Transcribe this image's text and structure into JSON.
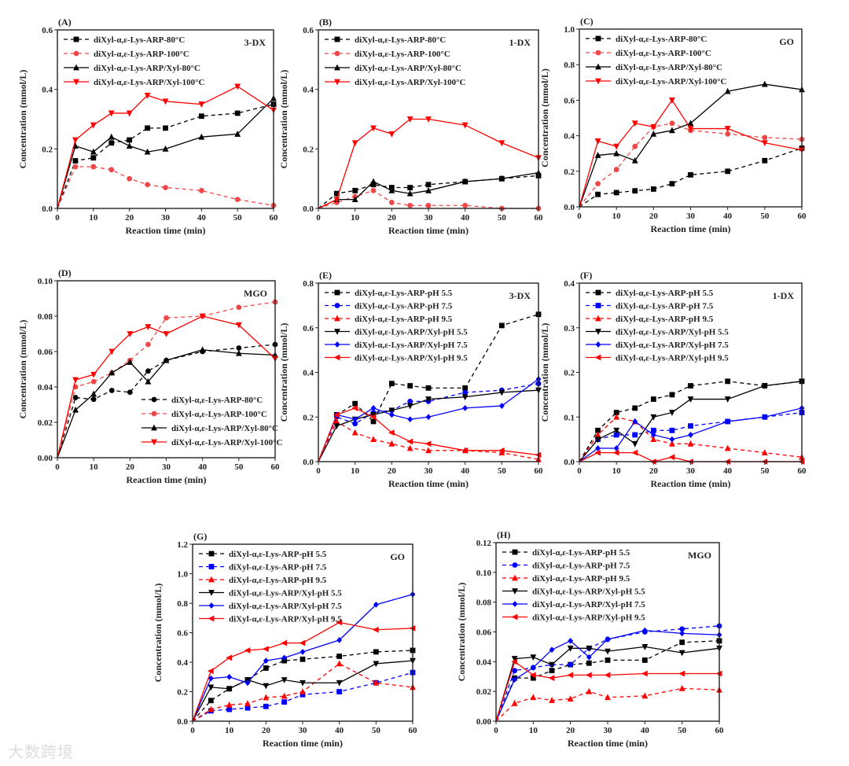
{
  "watermark": "大数跨境",
  "colors": {
    "black": "#000000",
    "red": "#ff0000",
    "light_red": "#f04848",
    "blue": "#0000ff"
  },
  "chart_data": [
    {
      "panel": "(A)",
      "tag": "3-DX",
      "type": "line",
      "xlabel": "Reaction time (min)",
      "ylabel": "Concentration (mmol/L)",
      "x": [
        0,
        5,
        10,
        15,
        20,
        25,
        30,
        40,
        50,
        60
      ],
      "xticks": [
        "0",
        "10",
        "20",
        "30",
        "40",
        "50",
        "60"
      ],
      "ylim": [
        0,
        0.6
      ],
      "yticks": [
        "0.0",
        "0.2",
        "0.4",
        "0.6"
      ],
      "legend": "top-left",
      "series": [
        {
          "name": "diXyl-α,ε-Lys-ARP-80°C",
          "color": "#000000",
          "dash": true,
          "marker": "square",
          "values": [
            0,
            0.16,
            0.17,
            0.22,
            0.23,
            0.27,
            0.27,
            0.31,
            0.32,
            0.35
          ]
        },
        {
          "name": "diXyl-α,ε-Lys-ARP-100°C",
          "color": "#f04848",
          "dash": true,
          "marker": "circle",
          "values": [
            0,
            0.14,
            0.14,
            0.13,
            0.1,
            0.08,
            0.07,
            0.06,
            0.03,
            0.01
          ]
        },
        {
          "name": "diXyl-α,ε-Lys-ARP/Xyl-80°C",
          "color": "#000000",
          "dash": false,
          "marker": "triangle",
          "values": [
            0,
            0.21,
            0.19,
            0.24,
            0.21,
            0.19,
            0.2,
            0.24,
            0.25,
            0.37
          ]
        },
        {
          "name": "diXyl-α,ε-Lys-ARP/Xyl-100°C",
          "color": "#ff0000",
          "dash": false,
          "marker": "down",
          "values": [
            0,
            0.23,
            0.28,
            0.32,
            0.32,
            0.38,
            0.36,
            0.35,
            0.41,
            0.33
          ]
        }
      ]
    },
    {
      "panel": "(B)",
      "tag": "1-DX",
      "type": "line",
      "xlabel": "Reaction time (min)",
      "ylabel": "Concentration (mmol/L)",
      "x": [
        0,
        5,
        10,
        15,
        20,
        25,
        30,
        40,
        50,
        60
      ],
      "xticks": [
        "0",
        "10",
        "20",
        "30",
        "40",
        "50",
        "60"
      ],
      "ylim": [
        0,
        0.6
      ],
      "yticks": [
        "0.0",
        "0.2",
        "0.4",
        "0.6"
      ],
      "legend": "top-left",
      "series": [
        {
          "name": "diXyl-α,ε-Lys-ARP-80°C",
          "color": "#000000",
          "dash": true,
          "marker": "square",
          "values": [
            0,
            0.05,
            0.06,
            0.08,
            0.07,
            0.07,
            0.08,
            0.09,
            0.1,
            0.11
          ]
        },
        {
          "name": "diXyl-α,ε-Lys-ARP-100°C",
          "color": "#f04848",
          "dash": true,
          "marker": "circle",
          "values": [
            0,
            0.02,
            0.04,
            0.06,
            0.02,
            0.01,
            0.01,
            0.01,
            0,
            0
          ]
        },
        {
          "name": "diXyl-α,ε-Lys-ARP/Xyl-80°C",
          "color": "#000000",
          "dash": false,
          "marker": "triangle",
          "values": [
            0,
            0.03,
            0.03,
            0.09,
            0.06,
            0.05,
            0.06,
            0.09,
            0.1,
            0.12
          ]
        },
        {
          "name": "diXyl-α,ε-Lys-ARP/Xyl-100°C",
          "color": "#ff0000",
          "dash": false,
          "marker": "down",
          "values": [
            0,
            0.03,
            0.22,
            0.27,
            0.25,
            0.3,
            0.3,
            0.28,
            0.22,
            0.17
          ]
        }
      ]
    },
    {
      "panel": "(C)",
      "tag": "GO",
      "type": "line",
      "xlabel": "Reaction time (min)",
      "ylabel": "Concentration (mmol/L)",
      "x": [
        0,
        5,
        10,
        15,
        20,
        25,
        30,
        40,
        50,
        60
      ],
      "xticks": [
        "0",
        "10",
        "20",
        "30",
        "40",
        "50",
        "60"
      ],
      "ylim": [
        0,
        1.0
      ],
      "yticks": [
        "0.0",
        "0.2",
        "0.4",
        "0.6",
        "0.8",
        "1.0"
      ],
      "legend": "top-left",
      "series": [
        {
          "name": "diXyl-α,ε-Lys-ARP-80°C",
          "color": "#000000",
          "dash": true,
          "marker": "square",
          "values": [
            0,
            0.07,
            0.08,
            0.09,
            0.1,
            0.13,
            0.18,
            0.2,
            0.26,
            0.33
          ]
        },
        {
          "name": "diXyl-α,ε-Lys-ARP-100°C",
          "color": "#f04848",
          "dash": true,
          "marker": "circle",
          "values": [
            0,
            0.13,
            0.21,
            0.34,
            0.45,
            0.47,
            0.43,
            0.41,
            0.39,
            0.38
          ]
        },
        {
          "name": "diXyl-α,ε-Lys-ARP/Xyl-80°C",
          "color": "#000000",
          "dash": false,
          "marker": "triangle",
          "values": [
            0,
            0.29,
            0.3,
            0.26,
            0.41,
            0.43,
            0.47,
            0.65,
            0.69,
            0.66
          ]
        },
        {
          "name": "diXyl-α,ε-Lys-ARP/Xyl-100°C",
          "color": "#ff0000",
          "dash": false,
          "marker": "down",
          "values": [
            0,
            0.37,
            0.34,
            0.47,
            0.45,
            0.6,
            0.44,
            0.44,
            0.36,
            0.32
          ]
        }
      ]
    },
    {
      "panel": "(D)",
      "tag": "MGO",
      "type": "line",
      "xlabel": "Reaction time (min)",
      "ylabel": "Concentration (mmol/L)",
      "x": [
        0,
        5,
        10,
        15,
        20,
        25,
        30,
        40,
        50,
        60
      ],
      "xticks": [
        "0",
        "10",
        "20",
        "30",
        "40",
        "50",
        "60"
      ],
      "ylim": [
        0,
        0.1
      ],
      "yticks": [
        "0.00",
        "0.02",
        "0.04",
        "0.06",
        "0.08",
        "0.10"
      ],
      "legend": "bottom-right",
      "series": [
        {
          "name": "diXyl-α,ε-Lys-ARP-80°C",
          "color": "#000000",
          "dash": true,
          "marker": "circle",
          "values": [
            0,
            0.034,
            0.033,
            0.038,
            0.037,
            0.049,
            0.055,
            0.06,
            0.062,
            0.064
          ]
        },
        {
          "name": "diXyl-α,ε-Lys-ARP-100°C",
          "color": "#f04848",
          "dash": true,
          "marker": "circle",
          "values": [
            0,
            0.04,
            0.043,
            0.048,
            0.055,
            0.064,
            0.079,
            0.08,
            0.085,
            0.088
          ]
        },
        {
          "name": "diXyl-α,ε-Lys-ARP/Xyl-80°C",
          "color": "#000000",
          "dash": false,
          "marker": "triangle",
          "values": [
            0,
            0.027,
            0.036,
            0.048,
            0.054,
            0.043,
            0.055,
            0.061,
            0.059,
            0.058
          ]
        },
        {
          "name": "diXyl-α,ε-Lys-ARP/Xyl-100°C",
          "color": "#ff0000",
          "dash": false,
          "marker": "down",
          "values": [
            0,
            0.044,
            0.047,
            0.06,
            0.07,
            0.074,
            0.07,
            0.08,
            0.075,
            0.056
          ]
        }
      ]
    },
    {
      "panel": "(E)",
      "tag": "3-DX",
      "type": "line",
      "xlabel": "Reaction time (min)",
      "ylabel": "Concentration (mmol/L)",
      "x": [
        0,
        5,
        10,
        15,
        20,
        25,
        30,
        40,
        50,
        60
      ],
      "xticks": [
        "0",
        "10",
        "20",
        "30",
        "40",
        "50",
        "60"
      ],
      "ylim": [
        0,
        0.8
      ],
      "yticks": [
        "0.0",
        "0.2",
        "0.4",
        "0.6",
        "0.8"
      ],
      "legend": "top-left",
      "series": [
        {
          "name": "diXyl-α,ε-Lys-ARP-pH 5.5",
          "color": "#000000",
          "dash": true,
          "marker": "square",
          "values": [
            0,
            0.21,
            0.26,
            0.18,
            0.35,
            0.34,
            0.33,
            0.33,
            0.61,
            0.66
          ]
        },
        {
          "name": "diXyl-α,ε-Lys-ARP-pH 7.5",
          "color": "#0000ff",
          "dash": true,
          "marker": "circle",
          "values": [
            0,
            0.2,
            0.17,
            0.22,
            0.23,
            0.27,
            0.27,
            0.31,
            0.32,
            0.35
          ]
        },
        {
          "name": "diXyl-α,ε-Lys-ARP-pH 9.5",
          "color": "#ff0000",
          "dash": true,
          "marker": "triangle",
          "values": [
            0,
            0.18,
            0.13,
            0.1,
            0.08,
            0.06,
            0.05,
            0.05,
            0.04,
            0.01
          ]
        },
        {
          "name": "diXyl-α,ε-Lys-ARP/Xyl-pH 5.5",
          "color": "#000000",
          "dash": false,
          "marker": "down",
          "values": [
            0,
            0.16,
            0.19,
            0.21,
            0.23,
            0.25,
            0.28,
            0.29,
            0.31,
            0.32
          ]
        },
        {
          "name": "diXyl-α,ε-Lys-ARP/Xyl-pH 7.5",
          "color": "#0000ff",
          "dash": false,
          "marker": "diamond",
          "values": [
            0,
            0.21,
            0.19,
            0.24,
            0.21,
            0.19,
            0.2,
            0.24,
            0.25,
            0.37
          ]
        },
        {
          "name": "diXyl-α,ε-Lys-ARP/Xyl-pH 9.5",
          "color": "#ff0000",
          "dash": false,
          "marker": "left",
          "values": [
            0,
            0.21,
            0.24,
            0.2,
            0.13,
            0.09,
            0.08,
            0.05,
            0.05,
            0.03
          ]
        }
      ]
    },
    {
      "panel": "(F)",
      "tag": "1-DX",
      "type": "line",
      "xlabel": "Reaction time (min)",
      "ylabel": "Concentration (mmol/L)",
      "x": [
        0,
        5,
        10,
        15,
        20,
        25,
        30,
        40,
        50,
        60
      ],
      "xticks": [
        "0",
        "10",
        "20",
        "30",
        "40",
        "50",
        "60"
      ],
      "ylim": [
        0,
        0.4
      ],
      "yticks": [
        "0.0",
        "0.1",
        "0.2",
        "0.3",
        "0.4"
      ],
      "legend": "top-left",
      "series": [
        {
          "name": "diXyl-α,ε-Lys-ARP-pH 5.5",
          "color": "#000000",
          "dash": true,
          "marker": "square",
          "values": [
            0,
            0.07,
            0.11,
            0.12,
            0.14,
            0.15,
            0.17,
            0.18,
            0.17,
            0.18
          ]
        },
        {
          "name": "diXyl-α,ε-Lys-ARP-pH 7.5",
          "color": "#0000ff",
          "dash": true,
          "marker": "square",
          "values": [
            0,
            0.05,
            0.06,
            0.06,
            0.07,
            0.07,
            0.08,
            0.09,
            0.1,
            0.11
          ]
        },
        {
          "name": "diXyl-α,ε-Lys-ARP-pH 9.5",
          "color": "#ff0000",
          "dash": true,
          "marker": "triangle",
          "values": [
            0,
            0.06,
            0.1,
            0.09,
            0.05,
            0.04,
            0.04,
            0.03,
            0.02,
            0.01
          ]
        },
        {
          "name": "diXyl-α,ε-Lys-ARP/Xyl-pH 5.5",
          "color": "#000000",
          "dash": false,
          "marker": "down",
          "values": [
            0,
            0.05,
            0.07,
            0.04,
            0.1,
            0.11,
            0.14,
            0.14,
            0.17,
            0.18
          ]
        },
        {
          "name": "diXyl-α,ε-Lys-ARP/Xyl-pH 7.5",
          "color": "#0000ff",
          "dash": false,
          "marker": "diamond",
          "values": [
            0,
            0.03,
            0.03,
            0.09,
            0.06,
            0.05,
            0.06,
            0.09,
            0.1,
            0.12
          ]
        },
        {
          "name": "diXyl-α,ε-Lys-ARP/Xyl-pH 9.5",
          "color": "#ff0000",
          "dash": false,
          "marker": "left",
          "values": [
            0,
            0.02,
            0.02,
            0.02,
            0.0,
            0.01,
            0.0,
            0.0,
            0.0,
            0.0
          ]
        }
      ]
    },
    {
      "panel": "(G)",
      "tag": "GO",
      "type": "line",
      "xlabel": "Reaction time (min)",
      "ylabel": "Concentration (mmol/L)",
      "x": [
        0,
        5,
        10,
        15,
        20,
        25,
        30,
        40,
        50,
        60
      ],
      "xticks": [
        "0",
        "10",
        "20",
        "30",
        "40",
        "50",
        "60"
      ],
      "ylim": [
        0,
        1.2
      ],
      "yticks": [
        "0.0",
        "0.2",
        "0.4",
        "0.6",
        "0.8",
        "1.0",
        "1.2"
      ],
      "legend": "top-left",
      "series": [
        {
          "name": "diXyl-α,ε-Lys-ARP-pH 5.5",
          "color": "#000000",
          "dash": true,
          "marker": "square",
          "values": [
            0,
            0.14,
            0.22,
            0.28,
            0.36,
            0.41,
            0.42,
            0.44,
            0.47,
            0.48
          ]
        },
        {
          "name": "diXyl-α,ε-Lys-ARP-pH 7.5",
          "color": "#0000ff",
          "dash": true,
          "marker": "square",
          "values": [
            0,
            0.07,
            0.08,
            0.09,
            0.1,
            0.13,
            0.18,
            0.2,
            0.26,
            0.33
          ]
        },
        {
          "name": "diXyl-α,ε-Lys-ARP-pH 9.5",
          "color": "#ff0000",
          "dash": true,
          "marker": "triangle",
          "values": [
            0,
            0.08,
            0.11,
            0.12,
            0.16,
            0.17,
            0.2,
            0.39,
            0.26,
            0.23
          ]
        },
        {
          "name": "diXyl-α,ε-Lys-ARP/Xyl-pH 5.5",
          "color": "#000000",
          "dash": false,
          "marker": "down",
          "values": [
            0,
            0.23,
            0.22,
            0.28,
            0.24,
            0.28,
            0.26,
            0.26,
            0.39,
            0.41
          ]
        },
        {
          "name": "diXyl-α,ε-Lys-ARP/Xyl-pH 7.5",
          "color": "#0000ff",
          "dash": false,
          "marker": "diamond",
          "values": [
            0,
            0.29,
            0.3,
            0.26,
            0.41,
            0.43,
            0.47,
            0.55,
            0.79,
            0.86
          ]
        },
        {
          "name": "diXyl-α,ε-Lys-ARP/Xyl-pH 9.5",
          "color": "#ff0000",
          "dash": false,
          "marker": "left",
          "values": [
            0,
            0.34,
            0.43,
            0.48,
            0.49,
            0.53,
            0.53,
            0.67,
            0.62,
            0.63
          ]
        }
      ]
    },
    {
      "panel": "(H)",
      "tag": "MGO",
      "type": "line",
      "xlabel": "Reaction time (min)",
      "ylabel": "Concentration (mmol/L)",
      "x": [
        0,
        5,
        10,
        15,
        20,
        25,
        30,
        40,
        50,
        60
      ],
      "xticks": [
        "0",
        "10",
        "20",
        "30",
        "40",
        "50",
        "60"
      ],
      "ylim": [
        0,
        0.12
      ],
      "yticks": [
        "0.00",
        "0.02",
        "0.04",
        "0.06",
        "0.08",
        "0.10",
        "0.12"
      ],
      "legend": "top-left",
      "series": [
        {
          "name": "diXyl-α,ε-Lys-ARP-pH 5.5",
          "color": "#000000",
          "dash": true,
          "marker": "square",
          "values": [
            0,
            0.029,
            0.029,
            0.034,
            0.038,
            0.039,
            0.041,
            0.041,
            0.053,
            0.054
          ]
        },
        {
          "name": "diXyl-α,ε-Lys-ARP-pH 7.5",
          "color": "#0000ff",
          "dash": true,
          "marker": "circle",
          "values": [
            0,
            0.034,
            0.036,
            0.038,
            0.038,
            0.049,
            0.055,
            0.06,
            0.062,
            0.064
          ]
        },
        {
          "name": "diXyl-α,ε-Lys-ARP-pH 9.5",
          "color": "#ff0000",
          "dash": true,
          "marker": "triangle",
          "values": [
            0,
            0.012,
            0.016,
            0.014,
            0.015,
            0.02,
            0.016,
            0.017,
            0.022,
            0.021
          ]
        },
        {
          "name": "diXyl-α,ε-Lys-ARP/Xyl-pH 5.5",
          "color": "#000000",
          "dash": false,
          "marker": "down",
          "values": [
            0,
            0.042,
            0.043,
            0.038,
            0.049,
            0.049,
            0.047,
            0.05,
            0.046,
            0.049
          ]
        },
        {
          "name": "diXyl-α,ε-Lys-ARP/Xyl-pH 7.5",
          "color": "#0000ff",
          "dash": false,
          "marker": "diamond",
          "values": [
            0,
            0.028,
            0.036,
            0.048,
            0.054,
            0.043,
            0.055,
            0.061,
            0.059,
            0.058
          ]
        },
        {
          "name": "diXyl-α,ε-Lys-ARP/Xyl-pH 9.5",
          "color": "#ff0000",
          "dash": false,
          "marker": "left",
          "values": [
            0,
            0.04,
            0.031,
            0.029,
            0.031,
            0.031,
            0.031,
            0.032,
            0.032,
            0.032
          ]
        }
      ]
    }
  ]
}
